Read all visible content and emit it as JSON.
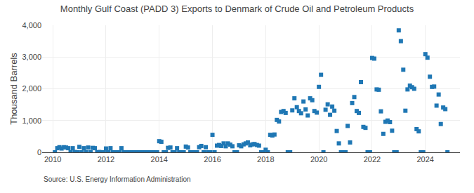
{
  "chart_data": {
    "type": "scatter",
    "title": "Monthly Gulf Coast (PADD 3) Exports to Denmark of Crude Oil and Petroleum Products",
    "y_label": "Thousand Barrels",
    "annotations": [
      "Source: U.S. Energy Information Administration"
    ],
    "marker": "square",
    "grid": true,
    "xlim": [
      2009.6,
      2025.3
    ],
    "xticks": [
      2010,
      2012,
      2014,
      2016,
      2018,
      2020,
      2022,
      2024
    ],
    "ylim": [
      0,
      4000
    ],
    "yticks": [
      0,
      {
        "value": 1000,
        "label": "1,000"
      },
      {
        "value": 2000,
        "label": "2,000"
      },
      {
        "value": 3000,
        "label": "3,000"
      },
      {
        "value": 4000,
        "label": "4,000"
      }
    ],
    "x": [
      2010.08,
      2010.17,
      2010.25,
      2010.33,
      2010.42,
      2010.5,
      2010.58,
      2010.67,
      2010.75,
      2010.83,
      2010.92,
      2011.0,
      2011.08,
      2011.17,
      2011.25,
      2011.33,
      2011.42,
      2011.5,
      2011.58,
      2011.67,
      2011.75,
      2011.83,
      2011.92,
      2012.0,
      2012.08,
      2012.17,
      2012.25,
      2012.33,
      2012.42,
      2012.5,
      2012.58,
      2012.67,
      2012.75,
      2012.83,
      2012.92,
      2013.0,
      2013.08,
      2013.17,
      2013.25,
      2013.33,
      2013.42,
      2013.5,
      2013.58,
      2013.67,
      2013.75,
      2013.83,
      2013.92,
      2014.0,
      2014.08,
      2014.17,
      2014.25,
      2014.33,
      2014.42,
      2014.5,
      2014.58,
      2014.67,
      2014.75,
      2014.83,
      2014.92,
      2015.0,
      2015.08,
      2015.17,
      2015.25,
      2015.33,
      2015.42,
      2015.5,
      2015.58,
      2015.67,
      2015.75,
      2015.83,
      2015.92,
      2016.0,
      2016.08,
      2016.17,
      2016.25,
      2016.33,
      2016.42,
      2016.5,
      2016.58,
      2016.67,
      2016.75,
      2016.83,
      2016.92,
      2017.0,
      2017.08,
      2017.17,
      2017.25,
      2017.33,
      2017.42,
      2017.5,
      2017.58,
      2017.67,
      2017.75,
      2017.83,
      2017.92,
      2018.0,
      2018.08,
      2018.17,
      2018.25,
      2018.33,
      2018.42,
      2018.5,
      2018.58,
      2018.67,
      2018.75,
      2018.83,
      2018.92,
      2019.0,
      2019.08,
      2019.17,
      2019.25,
      2019.33,
      2019.42,
      2019.5,
      2019.58,
      2019.67,
      2019.75,
      2019.83,
      2019.92,
      2020.0,
      2020.08,
      2020.17,
      2020.25,
      2020.33,
      2020.42,
      2020.5,
      2020.58,
      2020.67,
      2020.75,
      2020.83,
      2020.92,
      2021.0,
      2021.08,
      2021.17,
      2021.25,
      2021.33,
      2021.42,
      2021.5,
      2021.58,
      2021.67,
      2021.75,
      2021.83,
      2021.92,
      2022.0,
      2022.08,
      2022.17,
      2022.25,
      2022.33,
      2022.42,
      2022.5,
      2022.58,
      2022.67,
      2022.75,
      2022.83,
      2022.92,
      2023.0,
      2023.08,
      2023.17,
      2023.25,
      2023.33,
      2023.42,
      2023.5,
      2023.58,
      2023.67,
      2023.75,
      2023.83,
      2023.92,
      2024.0,
      2024.08,
      2024.17,
      2024.25,
      2024.33,
      2024.42,
      2024.5,
      2024.58,
      2024.67,
      2024.75,
      2024.83
    ],
    "values": [
      0,
      130,
      160,
      120,
      160,
      150,
      130,
      0,
      130,
      10,
      0,
      170,
      0,
      130,
      0,
      150,
      0,
      140,
      130,
      0,
      10,
      0,
      0,
      120,
      0,
      130,
      0,
      0,
      0,
      0,
      130,
      0,
      0,
      0,
      0,
      0,
      0,
      0,
      0,
      0,
      0,
      0,
      0,
      0,
      0,
      0,
      0,
      350,
      330,
      0,
      0,
      140,
      150,
      0,
      0,
      130,
      0,
      0,
      0,
      180,
      150,
      0,
      0,
      0,
      0,
      160,
      200,
      0,
      160,
      0,
      0,
      550,
      0,
      210,
      230,
      200,
      280,
      190,
      280,
      240,
      190,
      0,
      0,
      220,
      190,
      250,
      280,
      310,
      220,
      250,
      260,
      230,
      210,
      0,
      0,
      80,
      0,
      550,
      530,
      560,
      1020,
      970,
      1270,
      1300,
      1240,
      0,
      0,
      1320,
      1700,
      1420,
      1300,
      1230,
      1600,
      1350,
      1160,
      1700,
      1640,
      1300,
      1250,
      2060,
      2440,
      0,
      1340,
      1510,
      1180,
      1440,
      1310,
      670,
      280,
      0,
      0,
      0,
      830,
      310,
      1550,
      1740,
      1300,
      1240,
      2210,
      800,
      770,
      0,
      0,
      2970,
      2950,
      1980,
      1970,
      1290,
      580,
      960,
      1000,
      950,
      680,
      0,
      0,
      3840,
      3500,
      2600,
      1310,
      1980,
      2100,
      2050,
      2000,
      730,
      660,
      0,
      0,
      3090,
      2980,
      2380,
      2060,
      2070,
      1470,
      1820,
      890,
      1410,
      1360,
      0
    ]
  }
}
